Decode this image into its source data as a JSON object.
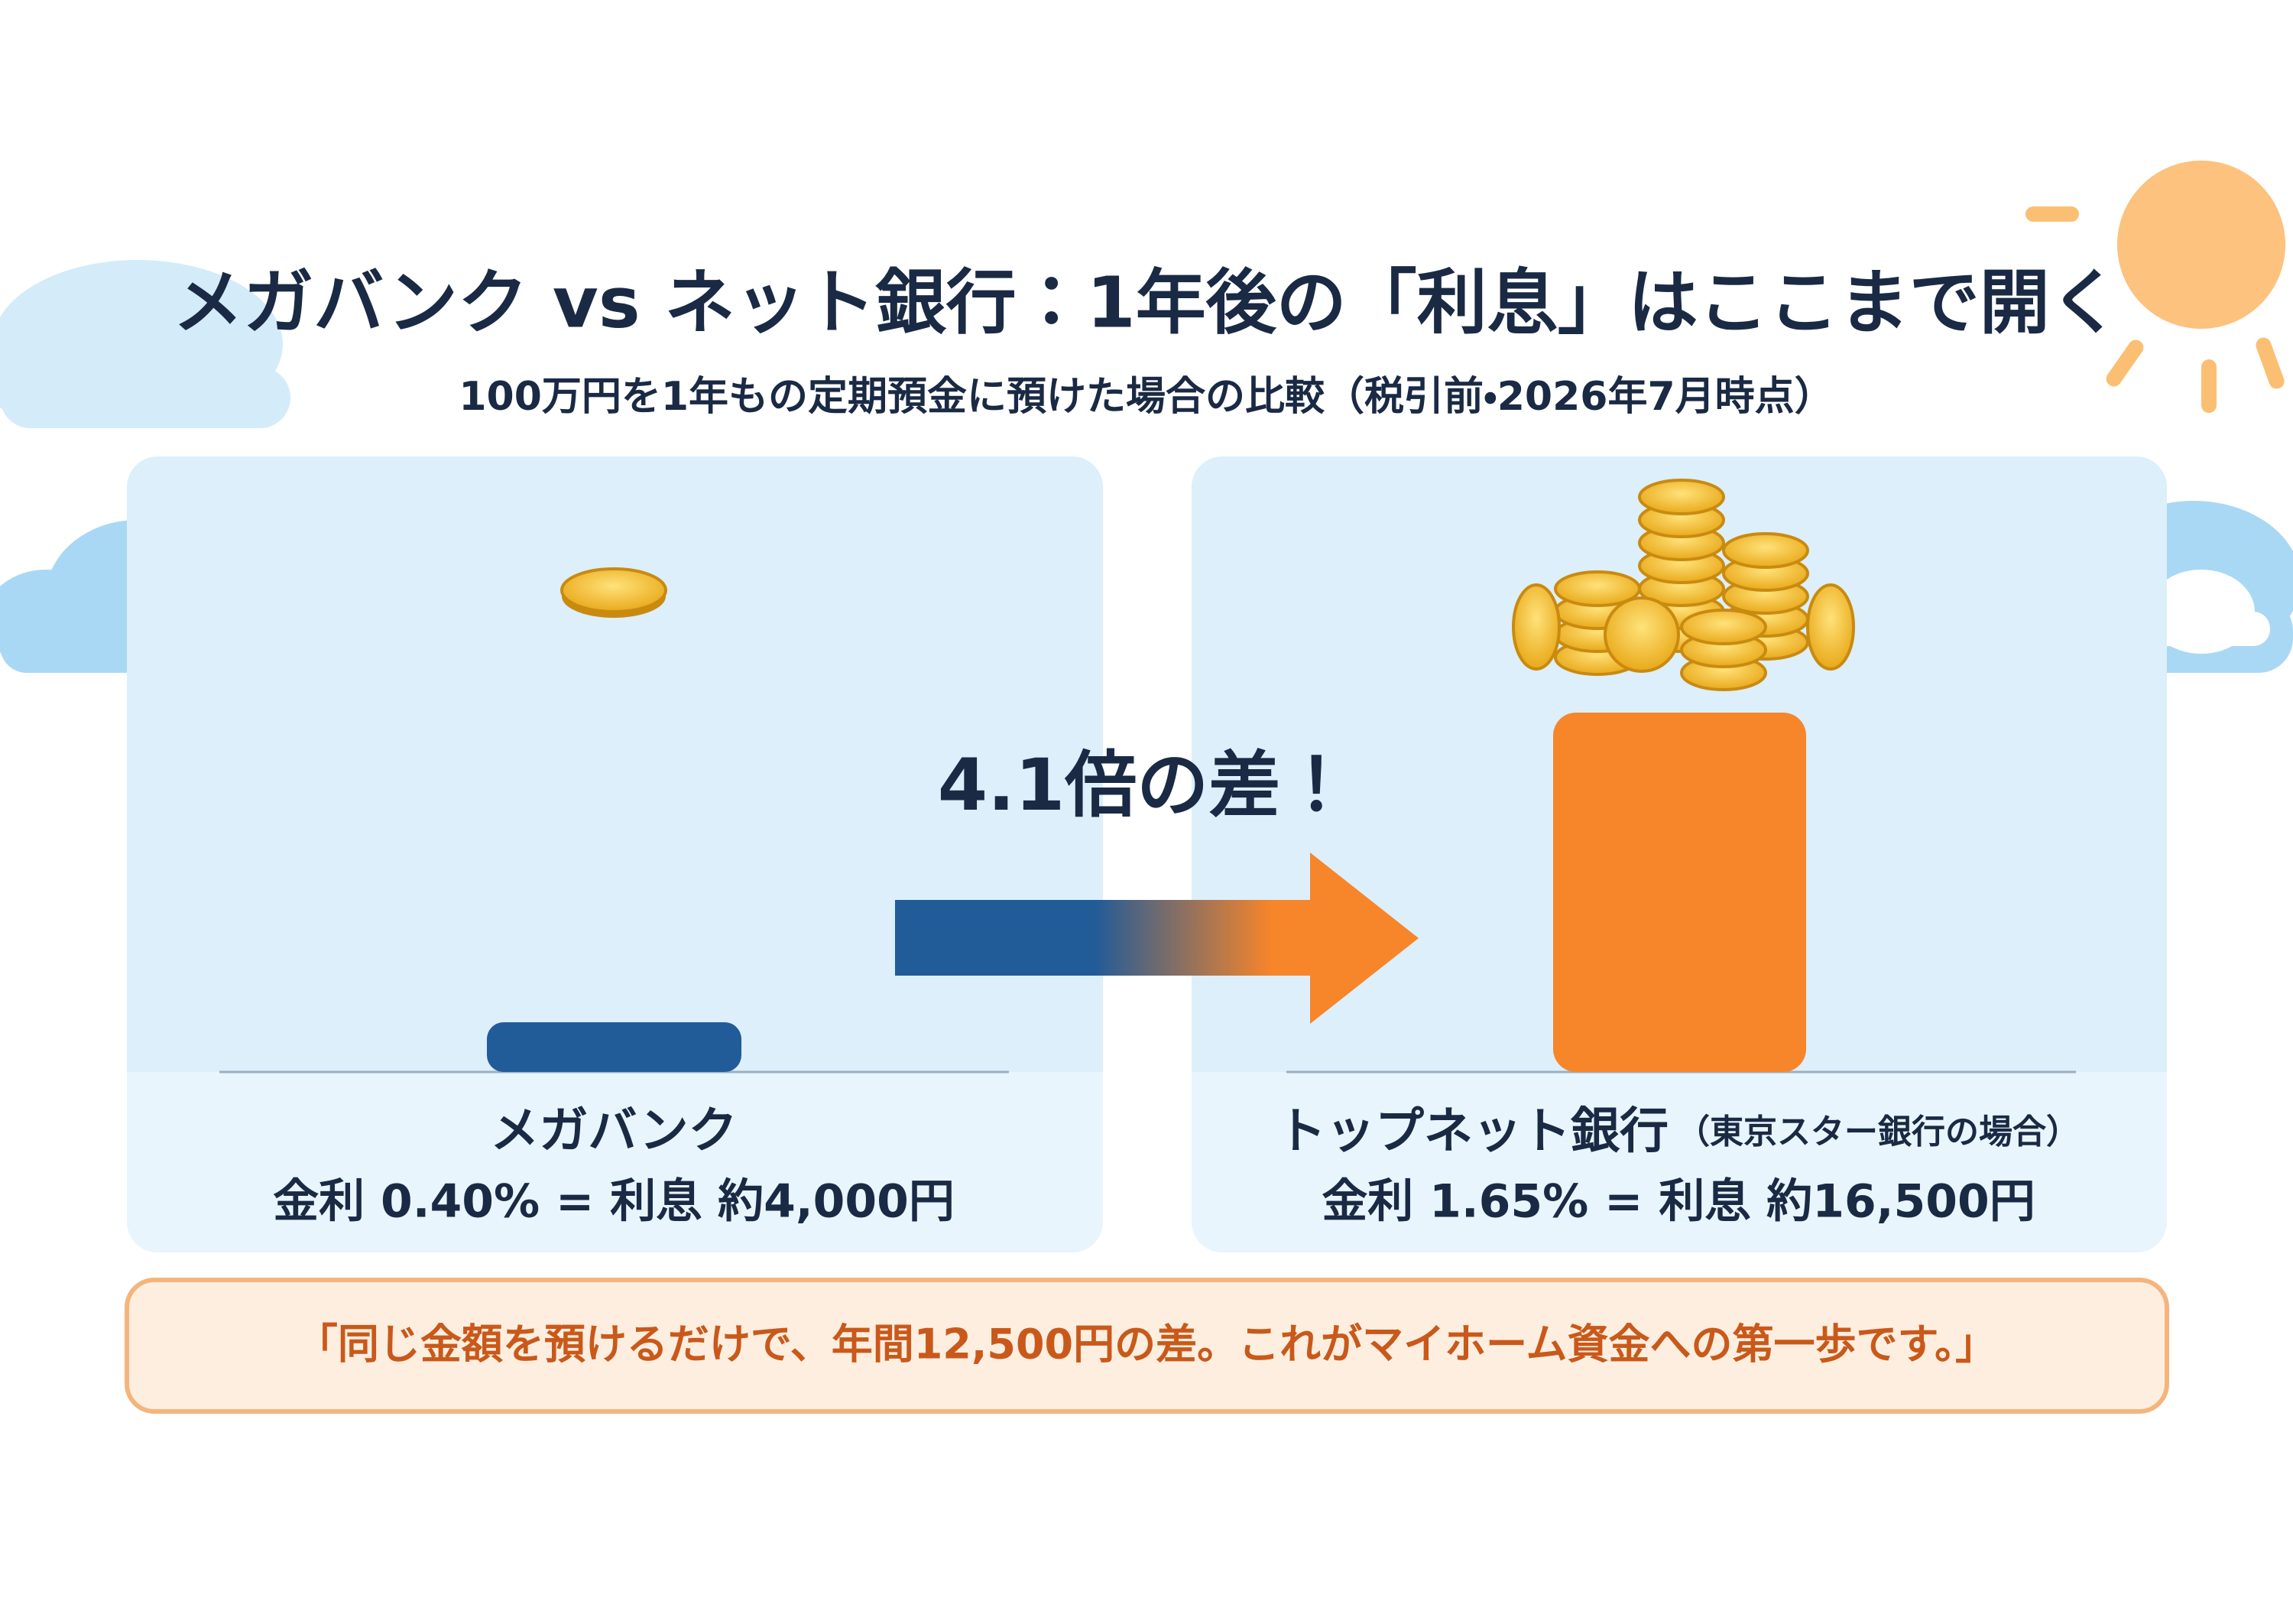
{
  "header": {
    "title": "メガバンク vs ネット銀行：1年後の「利息」はここまで開く",
    "subtitle": "100万円を1年もの定期預金に預けた場合の比較（税引前・2026年7月時点）"
  },
  "comparison": {
    "gap_label": "4.1倍の差！",
    "banks": [
      {
        "name": "メガバンク",
        "detail": "金利 0.40% = 利息 約4,000円"
      },
      {
        "name": "トップネット銀行",
        "note": "（東京スター銀行の場合）",
        "detail": "金利 1.65% = 利息 約16,500円"
      }
    ]
  },
  "quote": "「同じ金額を預けるだけで、年間12,500円の差。これがマイホーム資金への第一歩です。」"
}
